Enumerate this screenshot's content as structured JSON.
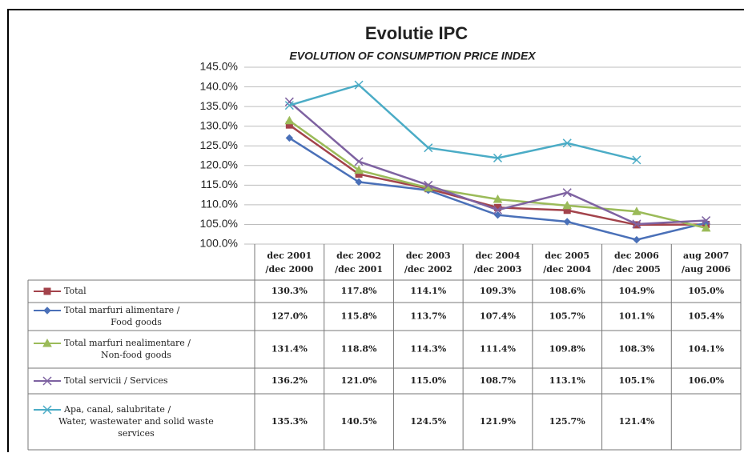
{
  "chart_data": {
    "type": "line",
    "title": "Evolutie IPC",
    "subtitle": "EVOLUTION OF CONSUMPTION PRICE INDEX",
    "categories": [
      [
        "dec 2001",
        "/dec 2000"
      ],
      [
        "dec 2002",
        "/dec 2001"
      ],
      [
        "dec 2003",
        "/dec 2002"
      ],
      [
        "dec 2004",
        "/dec 2003"
      ],
      [
        "dec 2005",
        "/dec 2004"
      ],
      [
        "dec 2006",
        "/dec 2005"
      ],
      [
        "aug 2007",
        "/aug 2006"
      ]
    ],
    "ylim": [
      100,
      145
    ],
    "yticks": [
      {
        "value": 100,
        "label": "100.0%"
      },
      {
        "value": 105,
        "label": "105.0%"
      },
      {
        "value": 110,
        "label": "110.0%"
      },
      {
        "value": 115,
        "label": "115.0%"
      },
      {
        "value": 120,
        "label": "120.0%"
      },
      {
        "value": 125,
        "label": "125.0%"
      },
      {
        "value": 130,
        "label": "130.0%"
      },
      {
        "value": 135,
        "label": "135.0%"
      },
      {
        "value": 140,
        "label": "140.0%"
      },
      {
        "value": 145,
        "label": "145.0%"
      }
    ],
    "grid": true,
    "series": [
      {
        "name": [
          "Total"
        ],
        "color": "#a3434b",
        "marker": "square",
        "values": [
          130.3,
          117.8,
          114.1,
          109.3,
          108.6,
          104.9,
          105.0
        ],
        "value_labels": [
          "130.3%",
          "117.8%",
          "114.1%",
          "109.3%",
          "108.6%",
          "104.9%",
          "105.0%"
        ]
      },
      {
        "name": [
          "Total marfuri alimentare /",
          "Food goods"
        ],
        "color": "#4a70b8",
        "marker": "diamond",
        "values": [
          127.0,
          115.8,
          113.7,
          107.4,
          105.7,
          101.1,
          105.4
        ],
        "value_labels": [
          "127.0%",
          "115.8%",
          "113.7%",
          "107.4%",
          "105.7%",
          "101.1%",
          "105.4%"
        ]
      },
      {
        "name": [
          "Total marfuri nealimentare /",
          "Non-food goods"
        ],
        "color": "#9bbb59",
        "marker": "triangle",
        "values": [
          131.4,
          118.8,
          114.3,
          111.4,
          109.8,
          108.3,
          104.1
        ],
        "value_labels": [
          "131.4%",
          "118.8%",
          "114.3%",
          "111.4%",
          "109.8%",
          "108.3%",
          "104.1%"
        ]
      },
      {
        "name": [
          "Total servicii / Services"
        ],
        "color": "#7e62a1",
        "marker": "x",
        "values": [
          136.2,
          121.0,
          115.0,
          108.7,
          113.1,
          105.1,
          106.0
        ],
        "value_labels": [
          "136.2%",
          "121.0%",
          "115.0%",
          "108.7%",
          "113.1%",
          "105.1%",
          "106.0%"
        ]
      },
      {
        "name": [
          "Apa, canal, salubritate /",
          "Water, wastewater and solid waste",
          "services"
        ],
        "color": "#4bacc6",
        "marker": "x",
        "values": [
          135.3,
          140.5,
          124.5,
          121.9,
          125.7,
          121.4,
          null
        ],
        "value_labels": [
          "135.3%",
          "140.5%",
          "124.5%",
          "121.9%",
          "125.7%",
          "121.4%",
          null
        ]
      }
    ]
  }
}
